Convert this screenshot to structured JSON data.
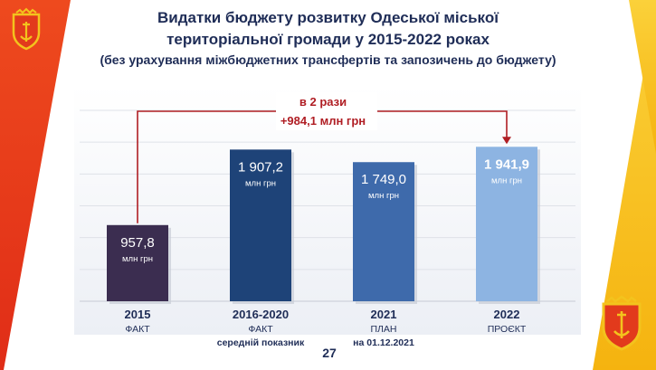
{
  "title": {
    "line1": "Видатки бюджету розвитку Одеської міської",
    "line2": "територіальної громади у 2015-2022 роках",
    "line3": "(без урахування міжбюджетних трансфертів та запозичень до бюджету)"
  },
  "page_number": "27",
  "colors": {
    "left_band": "#e63b1b",
    "right_band": "#f7c21c",
    "title": "#1f2d57",
    "annotation": "#b01e24",
    "bar_2015": "#3b2d50",
    "bar_2016_2020": "#1e4378",
    "bar_2021": "#3e6aab",
    "bar_2022": "#8db4e2"
  },
  "icons": [
    "odesa-coat-of-arms-icon"
  ],
  "chart_data": {
    "type": "bar",
    "categories": [
      "2015",
      "2016-2020",
      "2021",
      "2022"
    ],
    "category_sublabels": [
      [
        "ФАКТ"
      ],
      [
        "ФАКТ",
        "середній показник"
      ],
      [
        "ПЛАН",
        "на 01.12.2021"
      ],
      [
        "ПРОЄКТ"
      ]
    ],
    "values": [
      957.8,
      1907.2,
      1749.0,
      1941.9
    ],
    "value_labels": [
      "957,8",
      "1 907,2",
      "1 749,0",
      "1 941,9"
    ],
    "unit": "млн грн",
    "ylim": [
      0,
      2400
    ],
    "grid": true,
    "annotation": {
      "from": "2015",
      "to": "2022",
      "text1": "в 2 рази",
      "text2": "+984,1 млн грн"
    }
  }
}
